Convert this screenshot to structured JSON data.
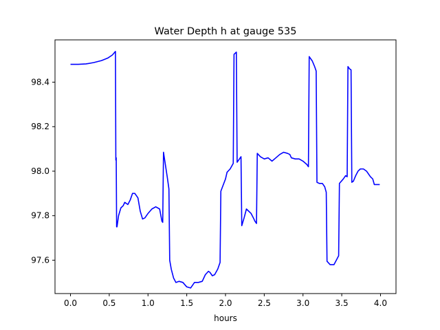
{
  "chart_data": {
    "type": "line",
    "title": "Water Depth h at gauge 535",
    "xlabel": "hours",
    "ylabel": "",
    "xlim": [
      -0.2,
      4.2
    ],
    "ylim": [
      97.45,
      98.59
    ],
    "x_ticks": [
      0.0,
      0.5,
      1.0,
      1.5,
      2.0,
      2.5,
      3.0,
      3.5,
      4.0
    ],
    "x_tick_labels": [
      "0.0",
      "0.5",
      "1.0",
      "1.5",
      "2.0",
      "2.5",
      "3.0",
      "3.5",
      "4.0"
    ],
    "y_ticks": [
      97.6,
      97.8,
      98.0,
      98.2,
      98.4
    ],
    "y_tick_labels": [
      "97.6",
      "97.8",
      "98.0",
      "98.2",
      "98.4"
    ],
    "grid": false,
    "colors": {
      "series": "#0000ff",
      "axes": "#000000",
      "background": "#ffffff"
    },
    "series": [
      {
        "color": "#0000ff",
        "points": [
          [
            0.0,
            98.48
          ],
          [
            0.1,
            98.48
          ],
          [
            0.2,
            98.482
          ],
          [
            0.3,
            98.488
          ],
          [
            0.4,
            98.497
          ],
          [
            0.48,
            98.508
          ],
          [
            0.54,
            98.522
          ],
          [
            0.58,
            98.538
          ],
          [
            0.585,
            98.05
          ],
          [
            0.59,
            98.06
          ],
          [
            0.595,
            97.75
          ],
          [
            0.6,
            97.75
          ],
          [
            0.62,
            97.8
          ],
          [
            0.65,
            97.835
          ],
          [
            0.68,
            97.845
          ],
          [
            0.7,
            97.86
          ],
          [
            0.72,
            97.855
          ],
          [
            0.74,
            97.85
          ],
          [
            0.77,
            97.87
          ],
          [
            0.8,
            97.9
          ],
          [
            0.83,
            97.9
          ],
          [
            0.87,
            97.88
          ],
          [
            0.9,
            97.82
          ],
          [
            0.93,
            97.785
          ],
          [
            0.96,
            97.79
          ],
          [
            1.0,
            97.81
          ],
          [
            1.05,
            97.83
          ],
          [
            1.1,
            97.84
          ],
          [
            1.15,
            97.83
          ],
          [
            1.18,
            97.775
          ],
          [
            1.19,
            97.77
          ],
          [
            1.2,
            98.085
          ],
          [
            1.25,
            97.97
          ],
          [
            1.27,
            97.92
          ],
          [
            1.28,
            97.6
          ],
          [
            1.3,
            97.56
          ],
          [
            1.33,
            97.52
          ],
          [
            1.36,
            97.5
          ],
          [
            1.4,
            97.505
          ],
          [
            1.45,
            97.5
          ],
          [
            1.5,
            97.48
          ],
          [
            1.55,
            97.475
          ],
          [
            1.6,
            97.5
          ],
          [
            1.65,
            97.5
          ],
          [
            1.7,
            97.505
          ],
          [
            1.74,
            97.535
          ],
          [
            1.78,
            97.55
          ],
          [
            1.8,
            97.545
          ],
          [
            1.83,
            97.53
          ],
          [
            1.86,
            97.535
          ],
          [
            1.9,
            97.56
          ],
          [
            1.93,
            97.59
          ],
          [
            1.94,
            97.91
          ],
          [
            2.0,
            97.965
          ],
          [
            2.02,
            97.995
          ],
          [
            2.06,
            98.01
          ],
          [
            2.1,
            98.035
          ],
          [
            2.11,
            98.525
          ],
          [
            2.14,
            98.535
          ],
          [
            2.15,
            98.04
          ],
          [
            2.18,
            98.055
          ],
          [
            2.2,
            98.065
          ],
          [
            2.21,
            97.755
          ],
          [
            2.24,
            97.79
          ],
          [
            2.27,
            97.83
          ],
          [
            2.3,
            97.82
          ],
          [
            2.33,
            97.81
          ],
          [
            2.36,
            97.79
          ],
          [
            2.38,
            97.775
          ],
          [
            2.4,
            97.765
          ],
          [
            2.41,
            98.08
          ],
          [
            2.45,
            98.065
          ],
          [
            2.5,
            98.055
          ],
          [
            2.55,
            98.06
          ],
          [
            2.6,
            98.045
          ],
          [
            2.65,
            98.06
          ],
          [
            2.7,
            98.075
          ],
          [
            2.75,
            98.085
          ],
          [
            2.8,
            98.08
          ],
          [
            2.83,
            98.075
          ],
          [
            2.85,
            98.06
          ],
          [
            2.9,
            98.055
          ],
          [
            2.95,
            98.055
          ],
          [
            3.0,
            98.045
          ],
          [
            3.05,
            98.03
          ],
          [
            3.07,
            98.02
          ],
          [
            3.08,
            98.515
          ],
          [
            3.12,
            98.495
          ],
          [
            3.15,
            98.47
          ],
          [
            3.17,
            98.45
          ],
          [
            3.18,
            97.95
          ],
          [
            3.21,
            97.945
          ],
          [
            3.25,
            97.945
          ],
          [
            3.28,
            97.93
          ],
          [
            3.3,
            97.905
          ],
          [
            3.31,
            97.595
          ],
          [
            3.35,
            97.58
          ],
          [
            3.4,
            97.58
          ],
          [
            3.43,
            97.6
          ],
          [
            3.46,
            97.62
          ],
          [
            3.47,
            97.945
          ],
          [
            3.52,
            97.965
          ],
          [
            3.55,
            97.98
          ],
          [
            3.57,
            97.975
          ],
          [
            3.58,
            98.47
          ],
          [
            3.6,
            98.46
          ],
          [
            3.62,
            98.455
          ],
          [
            3.63,
            97.95
          ],
          [
            3.65,
            97.955
          ],
          [
            3.68,
            97.98
          ],
          [
            3.71,
            98.0
          ],
          [
            3.74,
            98.01
          ],
          [
            3.78,
            98.01
          ],
          [
            3.82,
            98.0
          ],
          [
            3.87,
            97.975
          ],
          [
            3.9,
            97.965
          ],
          [
            3.92,
            97.94
          ],
          [
            3.99,
            97.94
          ]
        ]
      }
    ]
  }
}
